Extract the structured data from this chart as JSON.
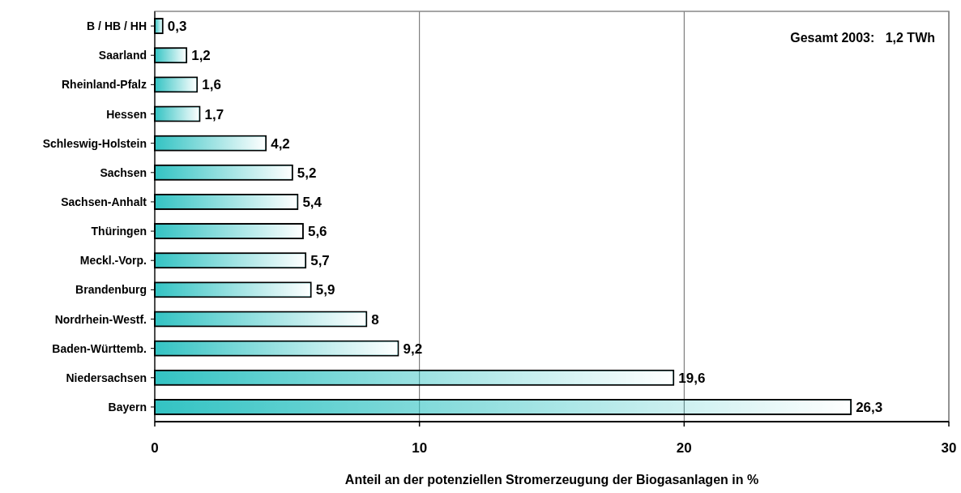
{
  "chart_data": {
    "type": "bar",
    "orientation": "horizontal",
    "xlabel": "Anteil an der potenziellen Stromerzeugung der Biogasanlagen in %",
    "categories": [
      "B / HB / HH",
      "Saarland",
      "Rheinland-Pfalz",
      "Hessen",
      "Schleswig-Holstein",
      "Sachsen",
      "Sachsen-Anhalt",
      "Thüringen",
      "Meckl.-Vorp.",
      "Brandenburg",
      "Nordrhein-Westf.",
      "Baden-Württemb.",
      "Niedersachsen",
      "Bayern"
    ],
    "values": [
      0.3,
      1.2,
      1.6,
      1.7,
      4.2,
      5.2,
      5.4,
      5.6,
      5.7,
      5.9,
      8,
      9.2,
      19.6,
      26.3
    ],
    "value_labels": [
      "0,3",
      "1,2",
      "1,6",
      "1,7",
      "4,2",
      "5,2",
      "5,4",
      "5,6",
      "5,7",
      "5,9",
      "8",
      "9,2",
      "19,6",
      "26,3"
    ],
    "color": "#33c3c3",
    "xlim": [
      0,
      30
    ],
    "xticks": [
      0,
      10,
      20,
      30
    ],
    "grid": "x",
    "annotations": [
      "Gesamt 2003:   1,2 TWh"
    ]
  }
}
